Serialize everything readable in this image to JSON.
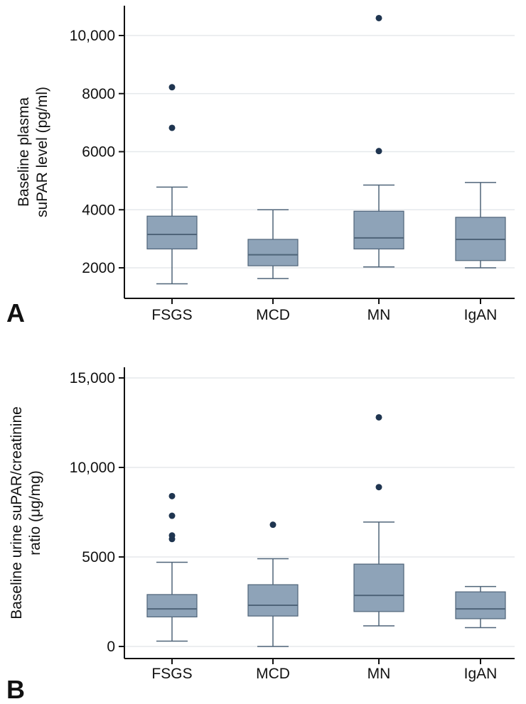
{
  "colors": {
    "box_fill": "#8ea3b8",
    "box_stroke": "#4f6479",
    "whisker": "#4f6479",
    "outlier": "#1f3550",
    "grid": "#e6e9ec",
    "axis": "#111111"
  },
  "chart_data": [
    {
      "panel_label": "A",
      "type": "box",
      "ylabel_lines": [
        "Baseline plasma",
        "suPAR level (pg/ml)"
      ],
      "categories": [
        "FSGS",
        "MCD",
        "MN",
        "IgAN"
      ],
      "ylim": [
        1200,
        11000
      ],
      "yticks": [
        2000,
        4000,
        6000,
        8000,
        10000
      ],
      "ytick_labels": [
        "2000",
        "4000",
        "6000",
        "8000",
        "10,000"
      ],
      "grid": true,
      "boxes": [
        {
          "category": "FSGS",
          "whisker_low": 1450,
          "q1": 2650,
          "median": 3150,
          "q3": 3780,
          "whisker_high": 4780,
          "outliers": [
            6820,
            8220
          ]
        },
        {
          "category": "MCD",
          "whisker_low": 1630,
          "q1": 2070,
          "median": 2450,
          "q3": 2980,
          "whisker_high": 4000,
          "outliers": []
        },
        {
          "category": "MN",
          "whisker_low": 2030,
          "q1": 2650,
          "median": 3030,
          "q3": 3950,
          "whisker_high": 4850,
          "outliers": [
            6020,
            10600
          ]
        },
        {
          "category": "IgAN",
          "whisker_low": 2000,
          "q1": 2250,
          "median": 2980,
          "q3": 3740,
          "whisker_high": 4940,
          "outliers": []
        }
      ]
    },
    {
      "panel_label": "B",
      "type": "box",
      "ylabel_lines": [
        "Baseline urine suPAR/creatinine",
        "ratio (μg/mg)"
      ],
      "categories": [
        "FSGS",
        "MCD",
        "MN",
        "IgAN"
      ],
      "ylim": [
        -700,
        15500
      ],
      "yticks": [
        0,
        5000,
        10000,
        15000
      ],
      "ytick_labels": [
        "0",
        "5000",
        "10,000",
        "15,000"
      ],
      "grid": true,
      "boxes": [
        {
          "category": "FSGS",
          "whisker_low": 300,
          "q1": 1650,
          "median": 2100,
          "q3": 2900,
          "whisker_high": 4700,
          "outliers": [
            6000,
            6200,
            7300,
            8400
          ]
        },
        {
          "category": "MCD",
          "whisker_low": 0,
          "q1": 1700,
          "median": 2300,
          "q3": 3450,
          "whisker_high": 4900,
          "outliers": [
            6800
          ]
        },
        {
          "category": "MN",
          "whisker_low": 1150,
          "q1": 1950,
          "median": 2850,
          "q3": 4600,
          "whisker_high": 6950,
          "outliers": [
            8900,
            12800
          ]
        },
        {
          "category": "IgAN",
          "whisker_low": 1050,
          "q1": 1550,
          "median": 2100,
          "q3": 3050,
          "whisker_high": 3350,
          "outliers": []
        }
      ]
    }
  ]
}
